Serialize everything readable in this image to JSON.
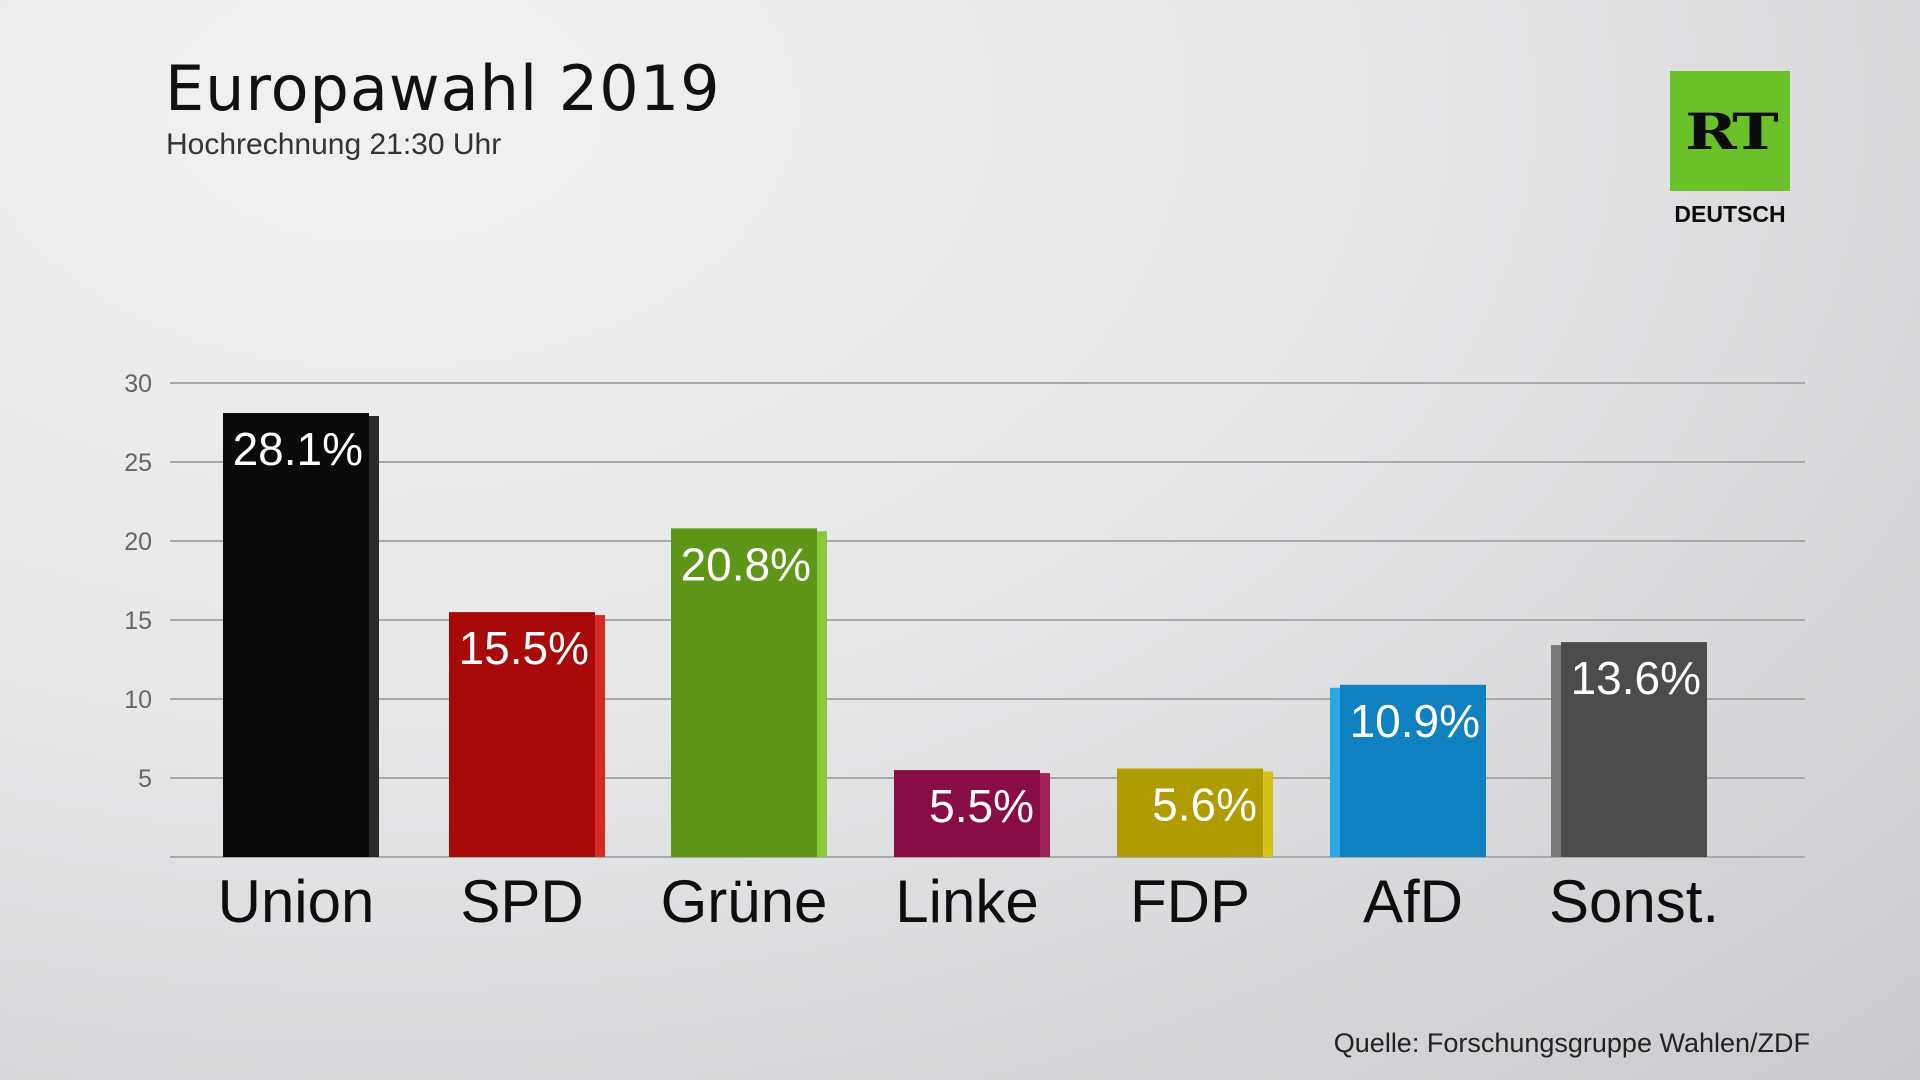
{
  "header": {
    "title": "Europawahl 2019",
    "subtitle": "Hochrechnung 21:30 Uhr"
  },
  "logo": {
    "mark": "RT",
    "sub": "DEUTSCH",
    "color": "#6ac12a"
  },
  "footer": {
    "source": "Quelle: Forschungsgruppe Wahlen/ZDF"
  },
  "chart_data": {
    "type": "bar",
    "categories": [
      "Union",
      "SPD",
      "Grüne",
      "Linke",
      "FDP",
      "AfD",
      "Sonst."
    ],
    "values": [
      28.1,
      15.5,
      20.8,
      5.5,
      5.6,
      10.9,
      13.6
    ],
    "value_labels": [
      "28.1%",
      "15.5%",
      "20.8%",
      "5.5%",
      "5.6%",
      "10.9%",
      "13.6%"
    ],
    "colors": [
      "#0a0a0a",
      "#a80a0a",
      "#5e9618",
      "#880c45",
      "#b09c00",
      "#0f80c0",
      "#4c4c4c"
    ],
    "side_colors": [
      "#2a2a2a",
      "#d72a20",
      "#8cc63a",
      "#a02058",
      "#d4c21a",
      "#2aa8e6",
      "#7a7a7a"
    ],
    "yticks": [
      5,
      10,
      15,
      20,
      25,
      30
    ],
    "ylim": [
      0,
      30
    ],
    "grid": true
  }
}
